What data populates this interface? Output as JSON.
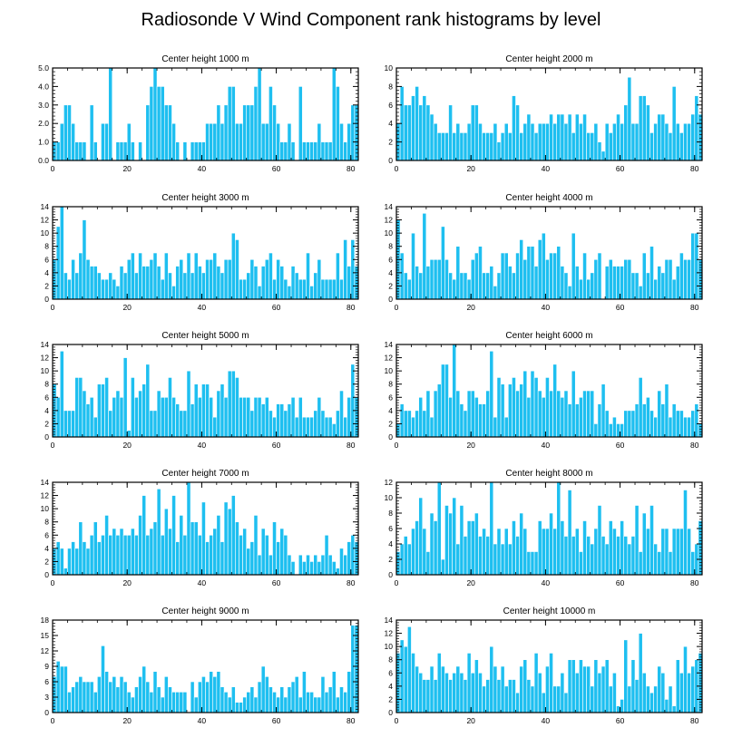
{
  "title": "Radiosonde V Wind Component rank histograms by level",
  "colors": {
    "bar": "#1ebff0",
    "bar_edge": "#ffffff",
    "axis": "#000000"
  },
  "chart_data": [
    {
      "type": "bar",
      "title": "Center height 1000 m",
      "xlim": [
        0,
        82
      ],
      "ylim": [
        0,
        5
      ],
      "yticks": [
        "0.0",
        "1.0",
        "2.0",
        "3.0",
        "4.0",
        "5.0"
      ],
      "xticks": [
        0,
        20,
        40,
        60,
        80
      ],
      "values": [
        1,
        1,
        2,
        3,
        3,
        2,
        1,
        1,
        1,
        0,
        3,
        1,
        0,
        2,
        2,
        5,
        0,
        1,
        1,
        1,
        2,
        1,
        0,
        1,
        0,
        3,
        4,
        5,
        4,
        4,
        3,
        3,
        2,
        1,
        0,
        1,
        0,
        1,
        1,
        1,
        1,
        2,
        2,
        2,
        3,
        2,
        3,
        4,
        4,
        2,
        2,
        3,
        3,
        3,
        4,
        5,
        2,
        2,
        4,
        3,
        2,
        1,
        1,
        2,
        1,
        0,
        4,
        1,
        1,
        1,
        1,
        2,
        1,
        1,
        1,
        5,
        4,
        2,
        1,
        2,
        3,
        3
      ]
    },
    {
      "type": "bar",
      "title": "Center height 2000 m",
      "xlim": [
        0,
        82
      ],
      "ylim": [
        0,
        10
      ],
      "yticks": [
        "0",
        "2",
        "4",
        "6",
        "8",
        "10"
      ],
      "xticks": [
        0,
        20,
        40,
        60,
        80
      ],
      "values": [
        4,
        8,
        6,
        6,
        7,
        8,
        6,
        7,
        6,
        5,
        4,
        3,
        3,
        3,
        6,
        3,
        4,
        3,
        3,
        4,
        6,
        6,
        4,
        3,
        3,
        3,
        4,
        2,
        3,
        4,
        3,
        7,
        6,
        3,
        4,
        5,
        4,
        3,
        4,
        4,
        4,
        5,
        4,
        5,
        5,
        4,
        5,
        3,
        5,
        4,
        5,
        3,
        3,
        4,
        2,
        1,
        4,
        3,
        4,
        5,
        4,
        6,
        9,
        4,
        4,
        7,
        7,
        6,
        3,
        4,
        5,
        5,
        4,
        3,
        8,
        4,
        3,
        4,
        4,
        5,
        7,
        5
      ]
    },
    {
      "type": "bar",
      "title": "Center height 3000 m",
      "xlim": [
        0,
        82
      ],
      "ylim": [
        0,
        14
      ],
      "yticks": [
        "0",
        "2",
        "4",
        "6",
        "8",
        "10",
        "12",
        "14"
      ],
      "xticks": [
        0,
        20,
        40,
        60,
        80
      ],
      "values": [
        6,
        11,
        14,
        4,
        3,
        6,
        4,
        7,
        12,
        6,
        5,
        5,
        4,
        3,
        3,
        4,
        3,
        2,
        5,
        4,
        6,
        7,
        4,
        7,
        5,
        5,
        6,
        7,
        5,
        3,
        7,
        4,
        2,
        5,
        6,
        4,
        7,
        4,
        7,
        5,
        4,
        6,
        6,
        7,
        5,
        4,
        6,
        6,
        10,
        9,
        3,
        3,
        4,
        6,
        5,
        2,
        5,
        6,
        7,
        3,
        6,
        5,
        3,
        2,
        5,
        4,
        3,
        3,
        7,
        2,
        4,
        6,
        3,
        3,
        3,
        3,
        7,
        3,
        9,
        5,
        9,
        5
      ]
    },
    {
      "type": "bar",
      "title": "Center height 4000 m",
      "xlim": [
        0,
        82
      ],
      "ylim": [
        0,
        14
      ],
      "yticks": [
        "0",
        "2",
        "4",
        "6",
        "8",
        "10",
        "12",
        "14"
      ],
      "xticks": [
        0,
        20,
        40,
        60,
        80
      ],
      "values": [
        12,
        7,
        4,
        3,
        10,
        5,
        4,
        13,
        5,
        6,
        6,
        6,
        11,
        6,
        4,
        3,
        8,
        4,
        4,
        3,
        6,
        7,
        8,
        4,
        4,
        5,
        2,
        4,
        7,
        7,
        5,
        4,
        7,
        9,
        6,
        8,
        8,
        5,
        9,
        10,
        6,
        7,
        7,
        8,
        5,
        4,
        2,
        10,
        5,
        3,
        7,
        3,
        4,
        6,
        7,
        0,
        5,
        6,
        5,
        5,
        5,
        6,
        6,
        4,
        4,
        2,
        7,
        4,
        8,
        3,
        5,
        4,
        6,
        6,
        3,
        5,
        7,
        6,
        6,
        10,
        10,
        6
      ]
    },
    {
      "type": "bar",
      "title": "Center height 5000 m",
      "xlim": [
        0,
        82
      ],
      "ylim": [
        0,
        14
      ],
      "yticks": [
        "0",
        "2",
        "4",
        "6",
        "8",
        "10",
        "12",
        "14"
      ],
      "xticks": [
        0,
        20,
        40,
        60,
        80
      ],
      "values": [
        8,
        6,
        13,
        4,
        4,
        4,
        9,
        9,
        7,
        5,
        6,
        3,
        8,
        8,
        9,
        4,
        6,
        7,
        6,
        12,
        1,
        9,
        6,
        7,
        8,
        11,
        4,
        4,
        7,
        6,
        6,
        9,
        6,
        5,
        4,
        4,
        10,
        5,
        8,
        6,
        8,
        8,
        6,
        3,
        7,
        8,
        6,
        10,
        10,
        9,
        6,
        6,
        6,
        4,
        6,
        6,
        5,
        6,
        4,
        3,
        5,
        5,
        4,
        5,
        6,
        3,
        6,
        3,
        3,
        3,
        4,
        6,
        4,
        3,
        3,
        2,
        4,
        7,
        3,
        6,
        11,
        6
      ]
    },
    {
      "type": "bar",
      "title": "Center height 6000 m",
      "xlim": [
        0,
        82
      ],
      "ylim": [
        0,
        14
      ],
      "yticks": [
        "0",
        "2",
        "4",
        "6",
        "8",
        "10",
        "12",
        "14"
      ],
      "xticks": [
        0,
        20,
        40,
        60,
        80
      ],
      "values": [
        2,
        5,
        4,
        4,
        3,
        4,
        6,
        4,
        7,
        3,
        7,
        8,
        11,
        11,
        6,
        14,
        7,
        5,
        4,
        7,
        7,
        6,
        5,
        5,
        7,
        13,
        3,
        9,
        8,
        3,
        8,
        9,
        7,
        8,
        10,
        6,
        10,
        9,
        7,
        6,
        9,
        7,
        11,
        7,
        6,
        7,
        5,
        10,
        5,
        6,
        7,
        7,
        7,
        2,
        5,
        8,
        4,
        2,
        3,
        2,
        2,
        4,
        4,
        4,
        5,
        9,
        5,
        6,
        4,
        3,
        7,
        5,
        8,
        3,
        5,
        4,
        4,
        3,
        3,
        4,
        5,
        2
      ]
    },
    {
      "type": "bar",
      "title": "Center height 7000 m",
      "xlim": [
        0,
        82
      ],
      "ylim": [
        0,
        14
      ],
      "yticks": [
        "0",
        "2",
        "4",
        "6",
        "8",
        "10",
        "12",
        "14"
      ],
      "xticks": [
        0,
        20,
        40,
        60,
        80
      ],
      "values": [
        4,
        5,
        4,
        1,
        4,
        5,
        4,
        8,
        5,
        4,
        6,
        8,
        5,
        6,
        9,
        6,
        7,
        6,
        7,
        6,
        6,
        7,
        6,
        9,
        12,
        6,
        7,
        8,
        13,
        6,
        10,
        7,
        12,
        5,
        9,
        6,
        14,
        8,
        8,
        6,
        11,
        5,
        6,
        7,
        9,
        5,
        11,
        10,
        12,
        8,
        6,
        7,
        4,
        5,
        9,
        3,
        7,
        6,
        3,
        8,
        5,
        7,
        6,
        3,
        2,
        0,
        3,
        2,
        3,
        2,
        3,
        2,
        3,
        6,
        3,
        2,
        1,
        4,
        3,
        5,
        6,
        5
      ]
    },
    {
      "type": "bar",
      "title": "Center height 8000 m",
      "xlim": [
        0,
        82
      ],
      "ylim": [
        0,
        12
      ],
      "yticks": [
        "0",
        "2",
        "4",
        "6",
        "8",
        "10",
        "12"
      ],
      "xticks": [
        0,
        20,
        40,
        60,
        80
      ],
      "values": [
        3,
        4,
        5,
        4,
        6,
        7,
        10,
        6,
        3,
        8,
        7,
        12,
        2,
        9,
        8,
        10,
        4,
        9,
        5,
        7,
        7,
        8,
        5,
        6,
        5,
        12,
        4,
        6,
        4,
        6,
        4,
        7,
        5,
        8,
        6,
        3,
        3,
        3,
        7,
        6,
        6,
        8,
        6,
        12,
        7,
        5,
        11,
        5,
        6,
        3,
        7,
        5,
        4,
        6,
        9,
        5,
        4,
        7,
        6,
        5,
        7,
        5,
        4,
        5,
        9,
        3,
        8,
        6,
        9,
        4,
        3,
        6,
        6,
        3,
        6,
        6,
        6,
        11,
        6,
        3,
        4,
        7
      ]
    },
    {
      "type": "bar",
      "title": "Center height 9000 m",
      "xlim": [
        0,
        82
      ],
      "ylim": [
        0,
        18
      ],
      "yticks": [
        "0",
        "3",
        "6",
        "9",
        "12",
        "15",
        "18"
      ],
      "xticks": [
        0,
        20,
        40,
        60,
        80
      ],
      "values": [
        7,
        10,
        9,
        9,
        4,
        5,
        6,
        7,
        6,
        6,
        6,
        4,
        7,
        13,
        8,
        6,
        7,
        5,
        7,
        6,
        4,
        3,
        5,
        7,
        9,
        6,
        4,
        8,
        5,
        3,
        7,
        5,
        4,
        4,
        4,
        4,
        0,
        6,
        3,
        6,
        7,
        6,
        8,
        7,
        8,
        5,
        4,
        3,
        5,
        2,
        2,
        3,
        4,
        5,
        3,
        6,
        9,
        7,
        5,
        4,
        3,
        5,
        3,
        5,
        6,
        7,
        3,
        8,
        4,
        4,
        3,
        3,
        7,
        4,
        5,
        8,
        3,
        5,
        4,
        8,
        17,
        17
      ]
    },
    {
      "type": "bar",
      "title": "Center height 10000 m",
      "xlim": [
        0,
        82
      ],
      "ylim": [
        0,
        14
      ],
      "yticks": [
        "0",
        "2",
        "4",
        "6",
        "8",
        "10",
        "12",
        "14"
      ],
      "xticks": [
        0,
        20,
        40,
        60,
        80
      ],
      "values": [
        9,
        11,
        10,
        13,
        9,
        7,
        6,
        5,
        5,
        7,
        5,
        9,
        7,
        6,
        5,
        6,
        7,
        6,
        5,
        9,
        6,
        8,
        6,
        4,
        5,
        10,
        7,
        5,
        7,
        4,
        5,
        5,
        3,
        7,
        8,
        5,
        4,
        9,
        6,
        3,
        7,
        9,
        4,
        4,
        6,
        3,
        8,
        8,
        6,
        8,
        7,
        7,
        4,
        8,
        6,
        7,
        8,
        4,
        6,
        1,
        2,
        11,
        4,
        8,
        5,
        12,
        6,
        4,
        3,
        4,
        7,
        6,
        2,
        4,
        1,
        8,
        6,
        10,
        6,
        7,
        8,
        9
      ]
    }
  ]
}
